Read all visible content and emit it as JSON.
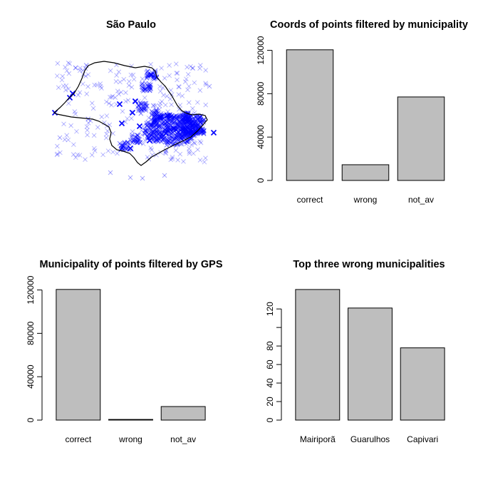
{
  "map": {
    "title": "São Paulo",
    "point_color": "#0000ff"
  },
  "chart_data": [
    {
      "type": "bar",
      "title": "Coords of points filtered by municipality",
      "xlabel": "",
      "ylabel": "",
      "categories": [
        "correct",
        "wrong",
        "not_av"
      ],
      "values": [
        120500,
        14500,
        77000
      ],
      "ylim": [
        0,
        123000
      ],
      "yticks": [
        "0",
        "40000",
        "80000",
        "120000"
      ],
      "bar_color": "#bebebe",
      "grid": false
    },
    {
      "type": "bar",
      "title": "Municipality of points filtered by GPS",
      "xlabel": "",
      "ylabel": "",
      "categories": [
        "correct",
        "wrong",
        "not_av"
      ],
      "values": [
        120500,
        600,
        12500
      ],
      "ylim": [
        0,
        123000
      ],
      "yticks": [
        "0",
        "40000",
        "80000",
        "120000"
      ],
      "bar_color": "#bebebe",
      "grid": false
    },
    {
      "type": "bar",
      "title": "Top three wrong municipalities",
      "xlabel": "",
      "ylabel": "",
      "categories": [
        "Mairiporã",
        "Guarulhos",
        "Capivari"
      ],
      "values": [
        141,
        121,
        78
      ],
      "ylim": [
        0,
        144
      ],
      "yticks": [
        "0",
        "20",
        "40",
        "60",
        "80",
        "",
        "120"
      ],
      "bar_color": "#bebebe",
      "grid": false
    }
  ]
}
